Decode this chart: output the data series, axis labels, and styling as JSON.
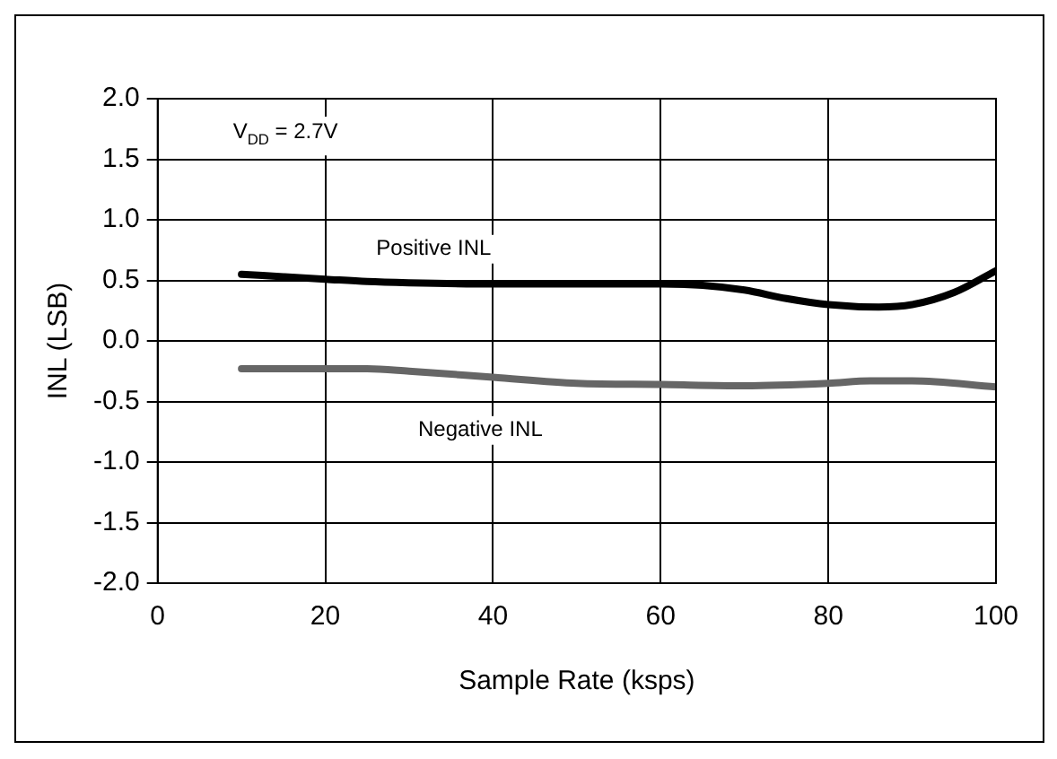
{
  "chart_data": {
    "type": "line",
    "xlabel": "Sample Rate (ksps)",
    "ylabel": "INL (LSB)",
    "annotations": [
      "V$_{DD}$ = 2.7V"
    ],
    "series": [
      {
        "name": "Positive INL",
        "color": "#000000",
        "x": [
          10,
          15,
          20,
          25,
          30,
          40,
          50,
          60,
          65,
          70,
          75,
          80,
          86,
          90,
          95,
          100
        ],
        "values": [
          0.55,
          0.53,
          0.51,
          0.49,
          0.48,
          0.47,
          0.47,
          0.47,
          0.46,
          0.42,
          0.35,
          0.3,
          0.28,
          0.3,
          0.4,
          0.58
        ]
      },
      {
        "name": "Negative INL",
        "color": "#666666",
        "x": [
          10,
          20,
          25,
          30,
          40,
          50,
          60,
          70,
          80,
          85,
          90,
          100
        ],
        "values": [
          -0.23,
          -0.23,
          -0.23,
          -0.25,
          -0.3,
          -0.35,
          -0.36,
          -0.37,
          -0.35,
          -0.33,
          -0.33,
          -0.38
        ]
      }
    ],
    "xlim": [
      0,
      100
    ],
    "xticks": [
      0,
      20,
      40,
      60,
      80,
      100
    ],
    "ylim": [
      -2,
      2
    ],
    "yticks": [
      {
        "value": -2,
        "label": "-2.0"
      },
      -1.5,
      {
        "value": -1,
        "label": "-1.0"
      },
      -0.5,
      {
        "value": 0,
        "label": "0.0"
      },
      0.5,
      {
        "value": 1,
        "label": "1.0"
      },
      1.5,
      {
        "value": 2,
        "label": "2.0"
      }
    ],
    "grid": true,
    "legend": false
  }
}
